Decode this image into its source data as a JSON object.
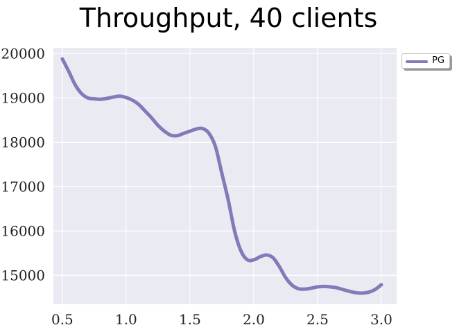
{
  "chart_data": {
    "type": "line",
    "title": "Throughput, 40 clients",
    "xlabel": "",
    "ylabel": "",
    "xlim": [
      0.43,
      3.12
    ],
    "ylim": [
      14350,
      20130
    ],
    "xticks": [
      0.5,
      1.0,
      1.5,
      2.0,
      2.5,
      3.0
    ],
    "xtick_labels": [
      "0.5",
      "1.0",
      "1.5",
      "2.0",
      "2.5",
      "3.0"
    ],
    "yticks": [
      15000,
      16000,
      17000,
      18000,
      19000,
      20000
    ],
    "ytick_labels": [
      "15000",
      "16000",
      "17000",
      "18000",
      "19000",
      "20000"
    ],
    "grid": true,
    "legend_position": "outside-top-right",
    "series": [
      {
        "name": "PG",
        "color": "#8479b9",
        "x": [
          0.5,
          0.55,
          0.6,
          0.65,
          0.7,
          0.75,
          0.8,
          0.85,
          0.9,
          0.95,
          1.0,
          1.05,
          1.1,
          1.15,
          1.2,
          1.25,
          1.3,
          1.35,
          1.4,
          1.45,
          1.5,
          1.55,
          1.6,
          1.65,
          1.7,
          1.75,
          1.8,
          1.85,
          1.9,
          1.95,
          2.0,
          2.05,
          2.1,
          2.15,
          2.2,
          2.25,
          2.3,
          2.35,
          2.4,
          2.45,
          2.5,
          2.55,
          2.6,
          2.65,
          2.7,
          2.75,
          2.8,
          2.85,
          2.9,
          2.95,
          3.0
        ],
        "values": [
          19880,
          19600,
          19300,
          19100,
          19000,
          18980,
          18970,
          18990,
          19020,
          19040,
          19010,
          18950,
          18850,
          18700,
          18550,
          18380,
          18250,
          18160,
          18150,
          18200,
          18250,
          18300,
          18310,
          18200,
          17900,
          17300,
          16700,
          16000,
          15550,
          15350,
          15350,
          15420,
          15460,
          15400,
          15200,
          14950,
          14780,
          14700,
          14690,
          14710,
          14740,
          14750,
          14740,
          14720,
          14680,
          14640,
          14610,
          14600,
          14620,
          14680,
          14790
        ]
      }
    ]
  }
}
